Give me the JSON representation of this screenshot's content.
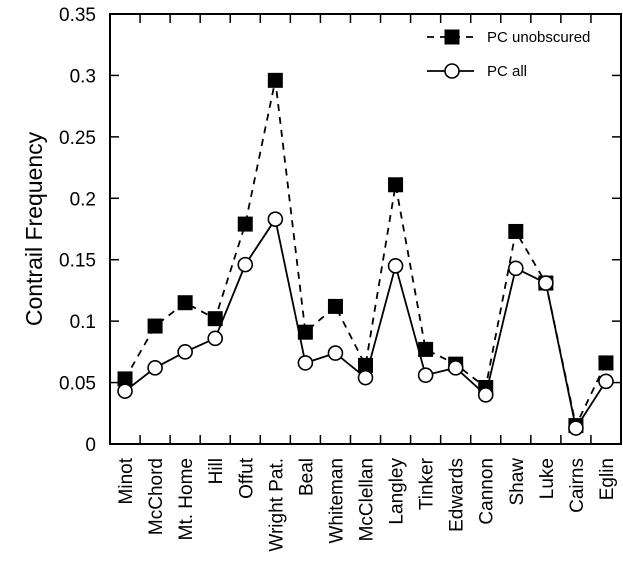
{
  "chart_data": {
    "type": "line",
    "title": "",
    "xlabel": "",
    "ylabel": "Contrail Frequency",
    "ylim": [
      0,
      0.35
    ],
    "yticks": [
      "0",
      "0.05",
      "0.1",
      "0.15",
      "0.2",
      "0.25",
      "0.3",
      "0.35"
    ],
    "grid": false,
    "legend_position": "top-right",
    "categories": [
      "Minot",
      "McChord",
      "Mt. Home",
      "Hill",
      "Offut",
      "Wright Pat.",
      "Beal",
      "Whiteman",
      "McClellan",
      "Langley",
      "Tinker",
      "Edwards",
      "Cannon",
      "Shaw",
      "Luke",
      "Cairns",
      "Eglin"
    ],
    "series": [
      {
        "name": "PC unobscured",
        "marker": "filled-square",
        "line": "dashed",
        "color": "#000000",
        "values": [
          0.053,
          0.096,
          0.115,
          0.102,
          0.179,
          0.296,
          0.091,
          0.112,
          0.064,
          0.211,
          0.077,
          0.065,
          0.046,
          0.173,
          0.131,
          0.015,
          0.066
        ]
      },
      {
        "name": "PC all",
        "marker": "open-circle",
        "line": "solid",
        "color": "#000000",
        "values": [
          0.043,
          0.062,
          0.075,
          0.086,
          0.146,
          0.183,
          0.066,
          0.074,
          0.054,
          0.145,
          0.056,
          0.062,
          0.04,
          0.143,
          0.131,
          0.013,
          0.051
        ]
      }
    ]
  }
}
